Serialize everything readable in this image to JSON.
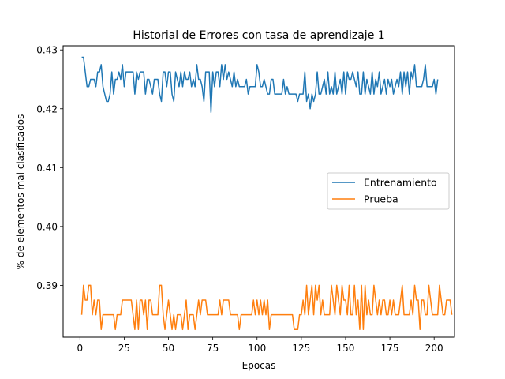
{
  "chart_data": {
    "type": "line",
    "title": "Historial de Errores con tasa de aprendizaje 1",
    "xlabel": "Epocas",
    "ylabel": "% de elementos mal clasificados",
    "xlim": [
      -9.5,
      211.5
    ],
    "ylim": [
      0.3812,
      0.4307
    ],
    "xticks": [
      0,
      25,
      50,
      75,
      100,
      125,
      150,
      175,
      200
    ],
    "xtick_labels": [
      "0",
      "25",
      "50",
      "75",
      "100",
      "125",
      "150",
      "175",
      "200"
    ],
    "yticks": [
      0.39,
      0.4,
      0.41,
      0.42,
      0.43
    ],
    "ytick_labels": [
      "0.39",
      "0.40",
      "0.41",
      "0.42",
      "0.43"
    ],
    "grid": false,
    "legend_position": "center-right",
    "x_start": 1,
    "series": [
      {
        "name": "Entrenamiento",
        "color": "#1f77b4",
        "values": [
          0.42875,
          0.42875,
          0.42625,
          0.42375,
          0.42375,
          0.425,
          0.425,
          0.425,
          0.42375,
          0.42625,
          0.42625,
          0.4275,
          0.42375,
          0.4225,
          0.42125,
          0.42125,
          0.4225,
          0.42625,
          0.4225,
          0.425,
          0.425,
          0.42625,
          0.425,
          0.4275,
          0.42375,
          0.42625,
          0.42625,
          0.42625,
          0.42625,
          0.42625,
          0.4225,
          0.42625,
          0.425,
          0.42625,
          0.42625,
          0.42625,
          0.4225,
          0.425,
          0.425,
          0.42375,
          0.4225,
          0.425,
          0.425,
          0.425,
          0.4225,
          0.42125,
          0.42625,
          0.42625,
          0.42375,
          0.42625,
          0.42625,
          0.4225,
          0.42125,
          0.42625,
          0.425,
          0.42375,
          0.42625,
          0.42375,
          0.42625,
          0.425,
          0.425,
          0.42625,
          0.42375,
          0.425,
          0.42375,
          0.4275,
          0.425,
          0.425,
          0.42375,
          0.42125,
          0.42625,
          0.42625,
          0.42625,
          0.41938,
          0.42625,
          0.42375,
          0.42625,
          0.42625,
          0.42375,
          0.4275,
          0.425,
          0.4275,
          0.425,
          0.42625,
          0.425,
          0.42375,
          0.42625,
          0.42375,
          0.425,
          0.42375,
          0.42375,
          0.42375,
          0.42375,
          0.425,
          0.4225,
          0.42375,
          0.42375,
          0.42375,
          0.42375,
          0.4275,
          0.42625,
          0.42375,
          0.42375,
          0.425,
          0.42375,
          0.4225,
          0.4225,
          0.425,
          0.425,
          0.4225,
          0.4225,
          0.4225,
          0.4225,
          0.4225,
          0.425,
          0.4225,
          0.42375,
          0.4225,
          0.4225,
          0.4225,
          0.4225,
          0.4225,
          0.42125,
          0.4225,
          0.4225,
          0.4225,
          0.42625,
          0.42125,
          0.4225,
          0.42,
          0.4225,
          0.42125,
          0.4225,
          0.42625,
          0.4225,
          0.4225,
          0.42375,
          0.425,
          0.4225,
          0.42625,
          0.4225,
          0.42375,
          0.4225,
          0.42625,
          0.4225,
          0.42375,
          0.425,
          0.4225,
          0.42625,
          0.4225,
          0.42625,
          0.425,
          0.425,
          0.42625,
          0.425,
          0.42375,
          0.42625,
          0.4225,
          0.4225,
          0.42625,
          0.4225,
          0.425,
          0.42375,
          0.4225,
          0.42625,
          0.4225,
          0.425,
          0.42375,
          0.42625,
          0.4225,
          0.42375,
          0.425,
          0.4225,
          0.425,
          0.42375,
          0.425,
          0.4225,
          0.42375,
          0.425,
          0.42375,
          0.42625,
          0.4225,
          0.42625,
          0.42375,
          0.42625,
          0.4225,
          0.42625,
          0.425,
          0.4275,
          0.42375,
          0.42375,
          0.42375,
          0.42375,
          0.425,
          0.4275,
          0.42375,
          0.42375,
          0.42375,
          0.42375,
          0.425,
          0.4225,
          0.425
        ]
      },
      {
        "name": "Prueba",
        "color": "#ff7f0e",
        "values": [
          0.385,
          0.39,
          0.3875,
          0.3875,
          0.39,
          0.39,
          0.385,
          0.3875,
          0.385,
          0.3875,
          0.3875,
          0.3825,
          0.385,
          0.385,
          0.385,
          0.385,
          0.385,
          0.385,
          0.385,
          0.3825,
          0.385,
          0.385,
          0.385,
          0.3875,
          0.3875,
          0.3875,
          0.3875,
          0.3875,
          0.3875,
          0.385,
          0.3825,
          0.3875,
          0.3825,
          0.3875,
          0.3875,
          0.385,
          0.3875,
          0.3825,
          0.3875,
          0.3875,
          0.385,
          0.385,
          0.385,
          0.385,
          0.39,
          0.39,
          0.385,
          0.3825,
          0.385,
          0.3875,
          0.385,
          0.3825,
          0.385,
          0.3825,
          0.385,
          0.385,
          0.385,
          0.3825,
          0.385,
          0.3875,
          0.3825,
          0.385,
          0.385,
          0.385,
          0.3825,
          0.385,
          0.3875,
          0.385,
          0.3875,
          0.3875,
          0.3875,
          0.385,
          0.385,
          0.385,
          0.385,
          0.385,
          0.385,
          0.385,
          0.3875,
          0.385,
          0.3875,
          0.3875,
          0.3875,
          0.3875,
          0.385,
          0.385,
          0.385,
          0.385,
          0.385,
          0.3825,
          0.385,
          0.385,
          0.385,
          0.385,
          0.385,
          0.385,
          0.385,
          0.3875,
          0.385,
          0.3875,
          0.385,
          0.3875,
          0.385,
          0.3875,
          0.385,
          0.3875,
          0.3825,
          0.385,
          0.385,
          0.385,
          0.385,
          0.385,
          0.385,
          0.385,
          0.385,
          0.385,
          0.385,
          0.385,
          0.385,
          0.385,
          0.3825,
          0.3825,
          0.3825,
          0.385,
          0.385,
          0.3875,
          0.385,
          0.39,
          0.385,
          0.3875,
          0.39,
          0.385,
          0.39,
          0.3875,
          0.39,
          0.385,
          0.3875,
          0.385,
          0.385,
          0.385,
          0.385,
          0.39,
          0.3875,
          0.385,
          0.39,
          0.3875,
          0.385,
          0.39,
          0.3875,
          0.3875,
          0.385,
          0.39,
          0.385,
          0.385,
          0.39,
          0.385,
          0.3875,
          0.3825,
          0.39,
          0.3825,
          0.39,
          0.385,
          0.3875,
          0.385,
          0.385,
          0.39,
          0.3875,
          0.385,
          0.3875,
          0.385,
          0.3875,
          0.3875,
          0.385,
          0.385,
          0.3875,
          0.385,
          0.3875,
          0.385,
          0.385,
          0.385,
          0.3875,
          0.39,
          0.385,
          0.385,
          0.385,
          0.385,
          0.3875,
          0.385,
          0.39,
          0.3875,
          0.3875,
          0.3825,
          0.3875,
          0.3875,
          0.385,
          0.385,
          0.39,
          0.3875,
          0.385,
          0.385,
          0.385,
          0.385,
          0.39,
          0.3875,
          0.385,
          0.385,
          0.3875,
          0.3875,
          0.3875,
          0.385
        ]
      }
    ]
  }
}
